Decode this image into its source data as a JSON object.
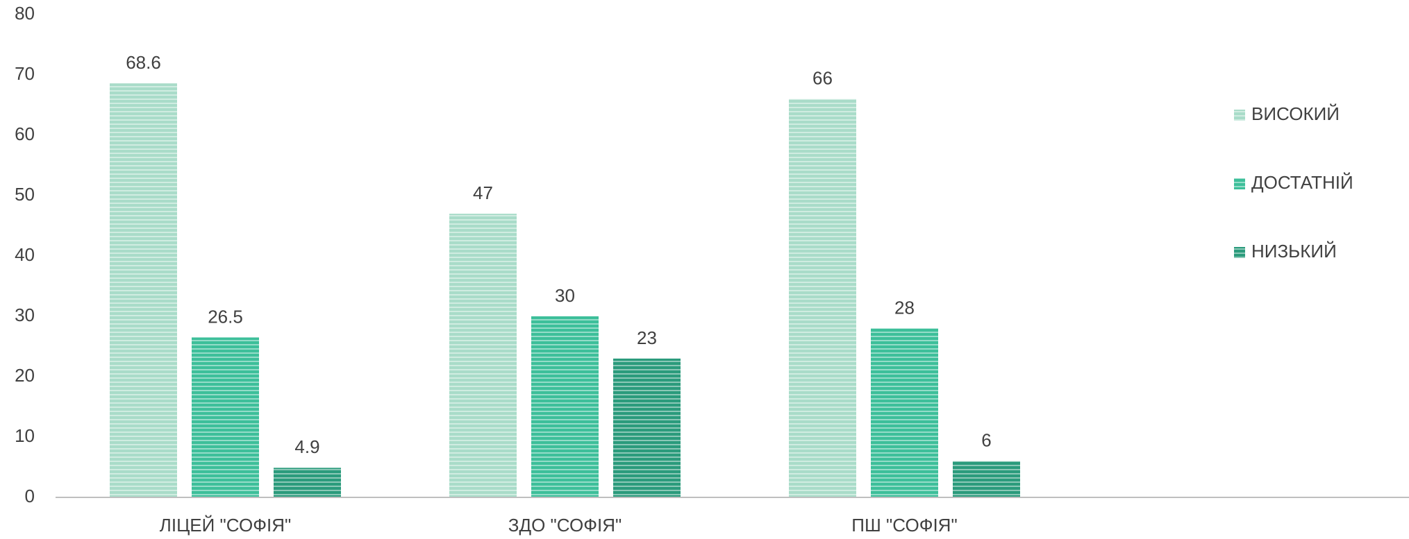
{
  "chart_data": {
    "type": "bar",
    "categories": [
      "ЛІЦЕЙ \"СОФІЯ\"",
      "ЗДО \"СОФІЯ\"",
      "ПШ \"СОФІЯ\""
    ],
    "series": [
      {
        "name": "ВИСОКИЙ",
        "color": "#a9dcc9",
        "values": [
          68.6,
          47,
          66
        ]
      },
      {
        "name": "ДОСТАТНІЙ",
        "color": "#3dbf9a",
        "values": [
          26.5,
          30,
          28
        ]
      },
      {
        "name": "НИЗЬКИЙ",
        "color": "#2b9b7c",
        "values": [
          4.9,
          23,
          6
        ]
      }
    ],
    "ylim": [
      0,
      80
    ],
    "yticks": [
      0,
      10,
      20,
      30,
      40,
      50,
      60,
      70,
      80
    ],
    "grid": false,
    "legend": "right"
  }
}
